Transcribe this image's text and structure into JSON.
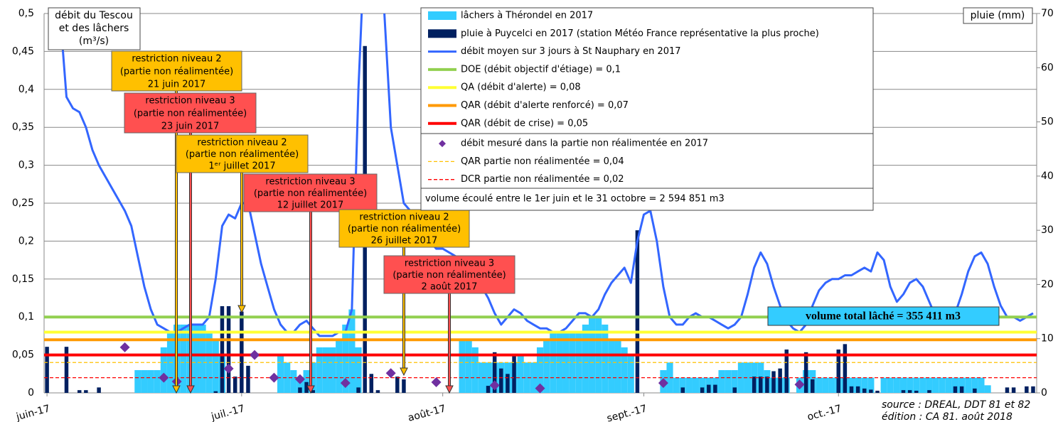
{
  "chart_data": {
    "type": "bar",
    "categories": [
      "juin-17",
      null,
      null,
      null,
      null,
      null,
      null,
      null,
      null,
      null,
      null,
      null,
      null,
      null,
      null,
      null,
      null,
      null,
      null,
      null,
      null,
      null,
      null,
      null,
      null,
      null,
      null,
      null,
      null,
      null,
      "juil.-17",
      null,
      null,
      null,
      null,
      null,
      null,
      null,
      null,
      null,
      null,
      null,
      null,
      null,
      null,
      null,
      null,
      null,
      null,
      null,
      null,
      null,
      null,
      null,
      null,
      null,
      null,
      null,
      null,
      null,
      null,
      "août-17",
      null,
      null,
      null,
      null,
      null,
      null,
      null,
      null,
      null,
      null,
      null,
      null,
      null,
      null,
      null,
      null,
      null,
      null,
      null,
      null,
      null,
      null,
      null,
      null,
      null,
      null,
      null,
      null,
      null,
      null,
      "sept.-17",
      null,
      null,
      null,
      null,
      null,
      null,
      null,
      null,
      null,
      null,
      null,
      null,
      null,
      null,
      null,
      null,
      null,
      null,
      null,
      null,
      null,
      null,
      null,
      null,
      null,
      null,
      null,
      null,
      null,
      "oct.-17",
      null,
      null,
      null,
      null,
      null,
      null,
      null,
      null,
      null,
      null,
      null,
      null,
      null,
      null,
      null,
      null,
      null,
      null,
      null,
      null,
      null,
      null,
      null,
      null,
      null,
      null,
      null,
      null,
      null,
      null
    ],
    "series": [
      {
        "name": "lâchers à Thérondel en 2017",
        "type": "bar",
        "color": "#33ccff",
        "values": [
          0,
          0,
          0,
          0,
          0,
          0,
          0,
          0,
          0,
          0,
          0,
          0,
          0,
          0,
          0.03,
          0.03,
          0.03,
          0.03,
          0.06,
          0.08,
          0.09,
          0.09,
          0.09,
          0.09,
          0.09,
          0.08,
          0.07,
          0.05,
          0,
          0,
          0,
          0,
          0,
          0,
          0,
          0,
          0.05,
          0.04,
          0.03,
          0.02,
          0.03,
          0.04,
          0.06,
          0.06,
          0.06,
          0.07,
          0.09,
          0.11,
          0.06,
          0,
          0,
          0,
          0,
          0,
          0,
          0,
          0,
          0,
          0,
          0,
          0,
          0,
          0,
          0,
          0.07,
          0.07,
          0.06,
          0.04,
          0.04,
          0.04,
          0.04,
          0.04,
          0.04,
          0.05,
          0.04,
          0.04,
          0.06,
          0.07,
          0.08,
          0.08,
          0.08,
          0.08,
          0.08,
          0.09,
          0.1,
          0.1,
          0.09,
          0.07,
          0.07,
          0.06,
          0.05,
          0,
          0,
          0,
          0,
          0.03,
          0.04,
          0.02,
          0.02,
          0.02,
          0.02,
          0.02,
          0.02,
          0.02,
          0.03,
          0.03,
          0.03,
          0.04,
          0.04,
          0.04,
          0.04,
          0.03,
          0.02,
          0.02,
          0.02,
          0,
          0.02,
          0.03,
          0.03,
          0.02,
          0.02,
          0.02,
          0.02,
          0.02,
          0.02,
          0.02,
          0.02,
          0.02,
          0,
          0.02,
          0.02,
          0.02,
          0.02,
          0.02,
          0.02,
          0.02,
          0.02,
          0.02,
          0.02,
          0.02,
          0.02,
          0.02,
          0.02,
          0.02,
          0.02,
          0.01,
          0,
          0,
          0,
          0,
          0,
          0,
          0
        ]
      },
      {
        "name": "pluie à Puycelci en 2017 (station Météo France représentative la plus proche)",
        "type": "bar",
        "axis": "y2",
        "color": "#002060",
        "values": [
          8.5,
          0,
          0,
          8.5,
          0,
          0.5,
          0.5,
          0,
          1,
          0,
          0,
          0,
          0,
          0,
          0,
          0,
          0,
          0,
          0,
          0,
          0,
          0,
          0,
          0,
          0,
          0,
          0.3,
          16,
          16,
          3,
          15,
          5,
          0,
          0,
          0,
          0,
          0,
          0,
          0,
          1,
          2,
          0.5,
          0,
          0,
          0,
          0,
          0,
          0,
          1,
          64,
          3.5,
          0.5,
          0,
          0,
          3,
          2.5,
          0,
          0,
          0,
          0,
          0,
          0,
          0,
          0,
          0,
          0,
          0,
          0,
          1.3,
          7.5,
          4.5,
          3.5,
          7,
          0,
          0,
          0,
          0,
          0,
          0,
          0,
          0,
          0,
          0,
          0,
          0,
          0,
          0,
          0,
          0,
          0,
          0,
          30,
          0,
          0,
          0,
          0,
          0,
          0,
          1,
          0,
          0,
          1,
          1.5,
          1.5,
          0,
          0,
          1,
          0,
          0,
          3,
          3,
          3,
          4,
          4.5,
          8,
          0,
          0,
          7.5,
          2.5,
          0,
          0,
          0,
          8,
          9,
          1.2,
          1.2,
          0.8,
          0.6,
          0.4,
          0,
          0,
          0,
          0.5,
          0.5,
          0.4,
          0,
          0.5,
          0,
          0,
          0,
          1.2,
          1.2,
          0,
          0.8,
          0,
          0,
          0,
          0,
          1,
          1,
          0,
          1.2,
          1.2
        ]
      },
      {
        "name": "débit moyen sur 3 jours à St Nauphary en 2017",
        "type": "line",
        "color": "#3366ff",
        "values": [
          0.6,
          0.55,
          0.5,
          0.39,
          0.375,
          0.37,
          0.35,
          0.32,
          0.3,
          0.285,
          0.27,
          0.255,
          0.24,
          0.22,
          0.18,
          0.14,
          0.11,
          0.09,
          0.085,
          0.08,
          0.08,
          0.085,
          0.09,
          0.09,
          0.09,
          0.1,
          0.15,
          0.22,
          0.235,
          0.23,
          0.25,
          0.25,
          0.21,
          0.17,
          0.14,
          0.11,
          0.09,
          0.08,
          0.08,
          0.09,
          0.095,
          0.085,
          0.075,
          0.075,
          0.075,
          0.08,
          0.08,
          0.11,
          0.4,
          0.6,
          0.7,
          0.65,
          0.5,
          0.35,
          0.3,
          0.25,
          0.24,
          0.22,
          0.21,
          0.2,
          0.19,
          0.19,
          0.185,
          0.18,
          0.17,
          0.16,
          0.15,
          0.14,
          0.125,
          0.105,
          0.09,
          0.1,
          0.11,
          0.105,
          0.095,
          0.09,
          0.085,
          0.085,
          0.08,
          0.08,
          0.085,
          0.095,
          0.105,
          0.105,
          0.1,
          0.11,
          0.13,
          0.145,
          0.155,
          0.165,
          0.145,
          0.2,
          0.235,
          0.24,
          0.2,
          0.14,
          0.1,
          0.09,
          0.09,
          0.1,
          0.105,
          0.1,
          0.1,
          0.095,
          0.09,
          0.085,
          0.09,
          0.1,
          0.13,
          0.165,
          0.185,
          0.17,
          0.14,
          0.115,
          0.095,
          0.085,
          0.08,
          0.09,
          0.115,
          0.135,
          0.145,
          0.15,
          0.15,
          0.155,
          0.155,
          0.16,
          0.165,
          0.16,
          0.185,
          0.175,
          0.14,
          0.12,
          0.13,
          0.145,
          0.15,
          0.14,
          0.12,
          0.1,
          0.095,
          0.1,
          0.105,
          0.13,
          0.16,
          0.18,
          0.185,
          0.17,
          0.14,
          0.115,
          0.1,
          0.1,
          0.095,
          0.1,
          0.105
        ]
      },
      {
        "name": "débit mesuré dans la partie non réalimentée en 2017",
        "type": "scatter",
        "color": "#7030a0",
        "values": [
          null,
          null,
          null,
          null,
          null,
          null,
          null,
          null,
          null,
          null,
          null,
          null,
          0.06,
          null,
          null,
          null,
          null,
          null,
          0.02,
          null,
          0.015,
          null,
          null,
          null,
          null,
          null,
          null,
          null,
          0.032,
          null,
          null,
          null,
          0.05,
          null,
          null,
          0.02,
          null,
          null,
          null,
          0.018,
          null,
          null,
          null,
          null,
          null,
          null,
          0.013,
          null,
          null,
          null,
          null,
          null,
          null,
          0.026,
          null,
          null,
          null,
          null,
          null,
          null,
          0.014,
          null,
          null,
          null,
          null,
          null,
          null,
          null,
          null,
          0.01,
          null,
          null,
          null,
          null,
          null,
          null,
          0.006,
          null,
          null,
          null,
          null,
          null,
          null,
          null,
          null,
          null,
          null,
          null,
          null,
          null,
          null,
          null,
          null,
          null,
          null,
          0.013,
          null,
          null,
          null,
          null,
          null,
          null,
          null,
          null,
          null,
          null,
          null,
          null,
          null,
          null,
          null,
          null,
          null,
          null,
          null,
          null,
          0.011,
          null,
          null,
          null,
          null,
          null,
          null,
          null,
          null,
          null,
          null,
          null,
          null,
          null,
          null,
          null,
          null,
          null,
          null,
          null,
          null,
          null,
          null,
          null,
          null,
          null,
          null,
          null,
          null,
          null,
          null,
          null,
          null,
          null,
          null,
          null,
          null
        ]
      }
    ],
    "reference_lines": [
      {
        "name": "DOE (débit objectif d'étiage) = 0,1",
        "value": 0.1,
        "color": "#92d050",
        "dashed": false
      },
      {
        "name": "QA (débit d'alerte) = 0,08",
        "value": 0.08,
        "color": "#ffff33",
        "dashed": false
      },
      {
        "name": "QAR (débit d'alerte renforcé) = 0,07",
        "value": 0.07,
        "color": "#ff9900",
        "dashed": false
      },
      {
        "name": "QAR (débit de crise) = 0,05",
        "value": 0.05,
        "color": "#ff0000",
        "dashed": false
      },
      {
        "name": "QAR partie non réalimentée = 0,04",
        "value": 0.04,
        "color": "#ffc000",
        "dashed": true
      },
      {
        "name": "DCR partie non réalimentée = 0,02",
        "value": 0.02,
        "color": "#ff0000",
        "dashed": true
      }
    ],
    "ylim": [
      0,
      0.5
    ],
    "yticks": [
      0,
      {
        "value": 0.05,
        "label": "0,05"
      },
      {
        "value": 0.1,
        "label": "0,1"
      },
      {
        "value": 0.15,
        "label": "0,15"
      },
      {
        "value": 0.2,
        "label": "0,2"
      },
      {
        "value": 0.25,
        "label": "0,25"
      },
      {
        "value": 0.3,
        "label": "0,3"
      },
      {
        "value": 0.35,
        "label": "0,35"
      },
      {
        "value": 0.4,
        "label": "0,4"
      },
      {
        "value": 0.45,
        "label": "0,45"
      },
      {
        "value": 0.5,
        "label": "0,5"
      }
    ],
    "y2lim": [
      0,
      70
    ],
    "y2ticks": [
      0,
      10,
      20,
      30,
      40,
      50,
      60,
      70
    ],
    "grid": true,
    "y_label": [
      "débit du Tescou",
      "et des lâchers",
      "(m³/s)"
    ],
    "y2_label": "pluie (mm)",
    "legend_note": "volume écoulé entre le 1er juin et le 31 octobre = 2 594 851 m3",
    "annotations": [
      {
        "lines": [
          "restriction niveau 2",
          "(partie non réalimentée)",
          "21 juin 2017"
        ],
        "color": "#ffc000"
      },
      {
        "lines": [
          "restriction niveau 3",
          "(partie non réalimentée)",
          "23 juin 2017"
        ],
        "color": "#ff5050"
      },
      {
        "lines": [
          "restriction niveau 2",
          "(partie non réalimentée)",
          "1ᵉʳ juillet 2017"
        ],
        "color": "#ffc000"
      },
      {
        "lines": [
          "restriction niveau 3",
          "(partie non réalimentée)",
          "12 juillet 2017"
        ],
        "color": "#ff5050"
      },
      {
        "lines": [
          "restriction niveau 2",
          "(partie non réalimentée)",
          "26 juillet 2017"
        ],
        "color": "#ffc000"
      },
      {
        "lines": [
          "restriction niveau 3",
          "(partie non réalimentée)",
          "2 août 2017"
        ],
        "color": "#ff5050"
      }
    ],
    "total_box": "volume total lâché = 355 411 m3",
    "source": [
      "source : DREAL, DDT 81 et 82",
      "édition : CA 81. août 2018"
    ]
  }
}
